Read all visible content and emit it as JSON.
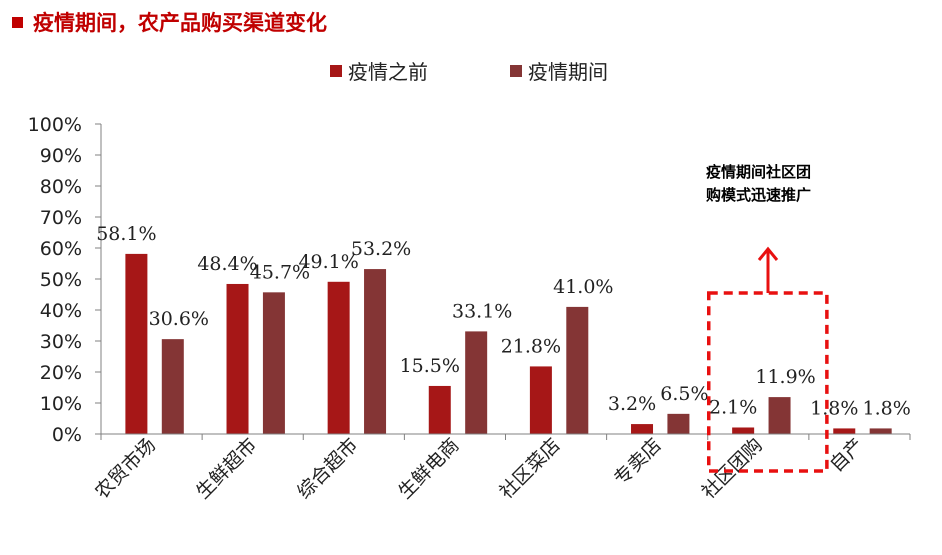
{
  "header": {
    "title": "疫情期间，农产品购买渠道变化"
  },
  "colors": {
    "title": "#c00000",
    "before": "#a61717",
    "during": "#843535",
    "highlight": "#e81010"
  },
  "chart_data": {
    "type": "bar",
    "title": "",
    "xlabel": "",
    "ylabel": "",
    "ylim": [
      0,
      100
    ],
    "y_ticks": [
      "0%",
      "10%",
      "20%",
      "30%",
      "40%",
      "50%",
      "60%",
      "70%",
      "80%",
      "90%",
      "100%"
    ],
    "grid": false,
    "legend_position": "top-center",
    "categories": [
      "农贸市场",
      "生鲜超市",
      "综合超市",
      "生鲜电商",
      "社区菜店",
      "专卖店",
      "社区团购",
      "自产"
    ],
    "series": [
      {
        "name": "疫情之前",
        "values": [
          58.1,
          48.4,
          49.1,
          15.5,
          21.8,
          3.2,
          2.1,
          1.8
        ],
        "labels": [
          "58.1%",
          "48.4%",
          "49.1%",
          "15.5%",
          "21.8%",
          "3.2%",
          "2.1%",
          "1.8%"
        ]
      },
      {
        "name": "疫情期间",
        "values": [
          30.6,
          45.7,
          53.2,
          33.1,
          41.0,
          6.5,
          11.9,
          1.8
        ],
        "labels": [
          "30.6%",
          "45.7%",
          "53.2%",
          "33.1%",
          "41.0%",
          "6.5%",
          "11.9%",
          "1.8%"
        ]
      }
    ],
    "annotation": {
      "lines": [
        "疫情期间社区团",
        "购模式迅速推广"
      ],
      "highlight_category": "社区团购"
    }
  }
}
